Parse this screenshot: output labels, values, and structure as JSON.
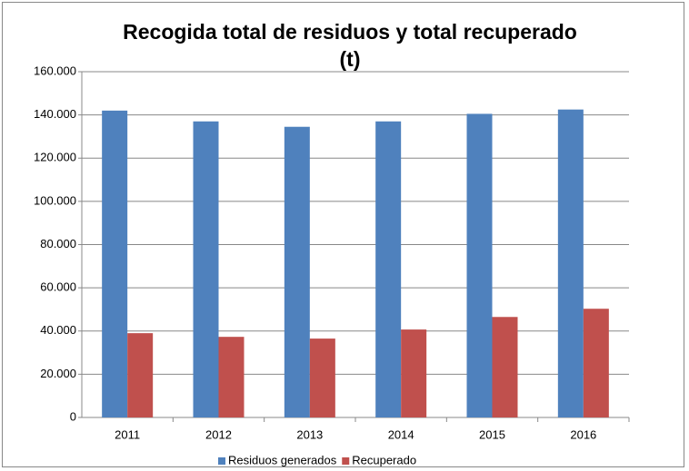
{
  "chart_data": {
    "type": "bar",
    "title": "Recogida total de residuos y total recuperado\n(t)",
    "categories": [
      "2011",
      "2012",
      "2013",
      "2014",
      "2015",
      "2016"
    ],
    "series": [
      {
        "name": "Residuos generados",
        "color": "#4f81bd",
        "values": [
          142000,
          137000,
          134500,
          137000,
          140500,
          142500
        ]
      },
      {
        "name": "Recuperado",
        "color": "#c0504d",
        "values": [
          39000,
          37300,
          36500,
          40700,
          46500,
          50300
        ]
      }
    ],
    "ylim": [
      0,
      160000
    ],
    "yticks": [
      0,
      {
        "value": 20000,
        "label": "20.000"
      },
      {
        "value": 40000,
        "label": "40.000"
      },
      {
        "value": 60000,
        "label": "60.000"
      },
      {
        "value": 80000,
        "label": "80.000"
      },
      {
        "value": 100000,
        "label": "100.000"
      },
      {
        "value": 120000,
        "label": "120.000"
      },
      {
        "value": 140000,
        "label": "140.000"
      },
      {
        "value": 160000,
        "label": "160.000"
      }
    ],
    "grid": true,
    "legend": "bottom"
  }
}
